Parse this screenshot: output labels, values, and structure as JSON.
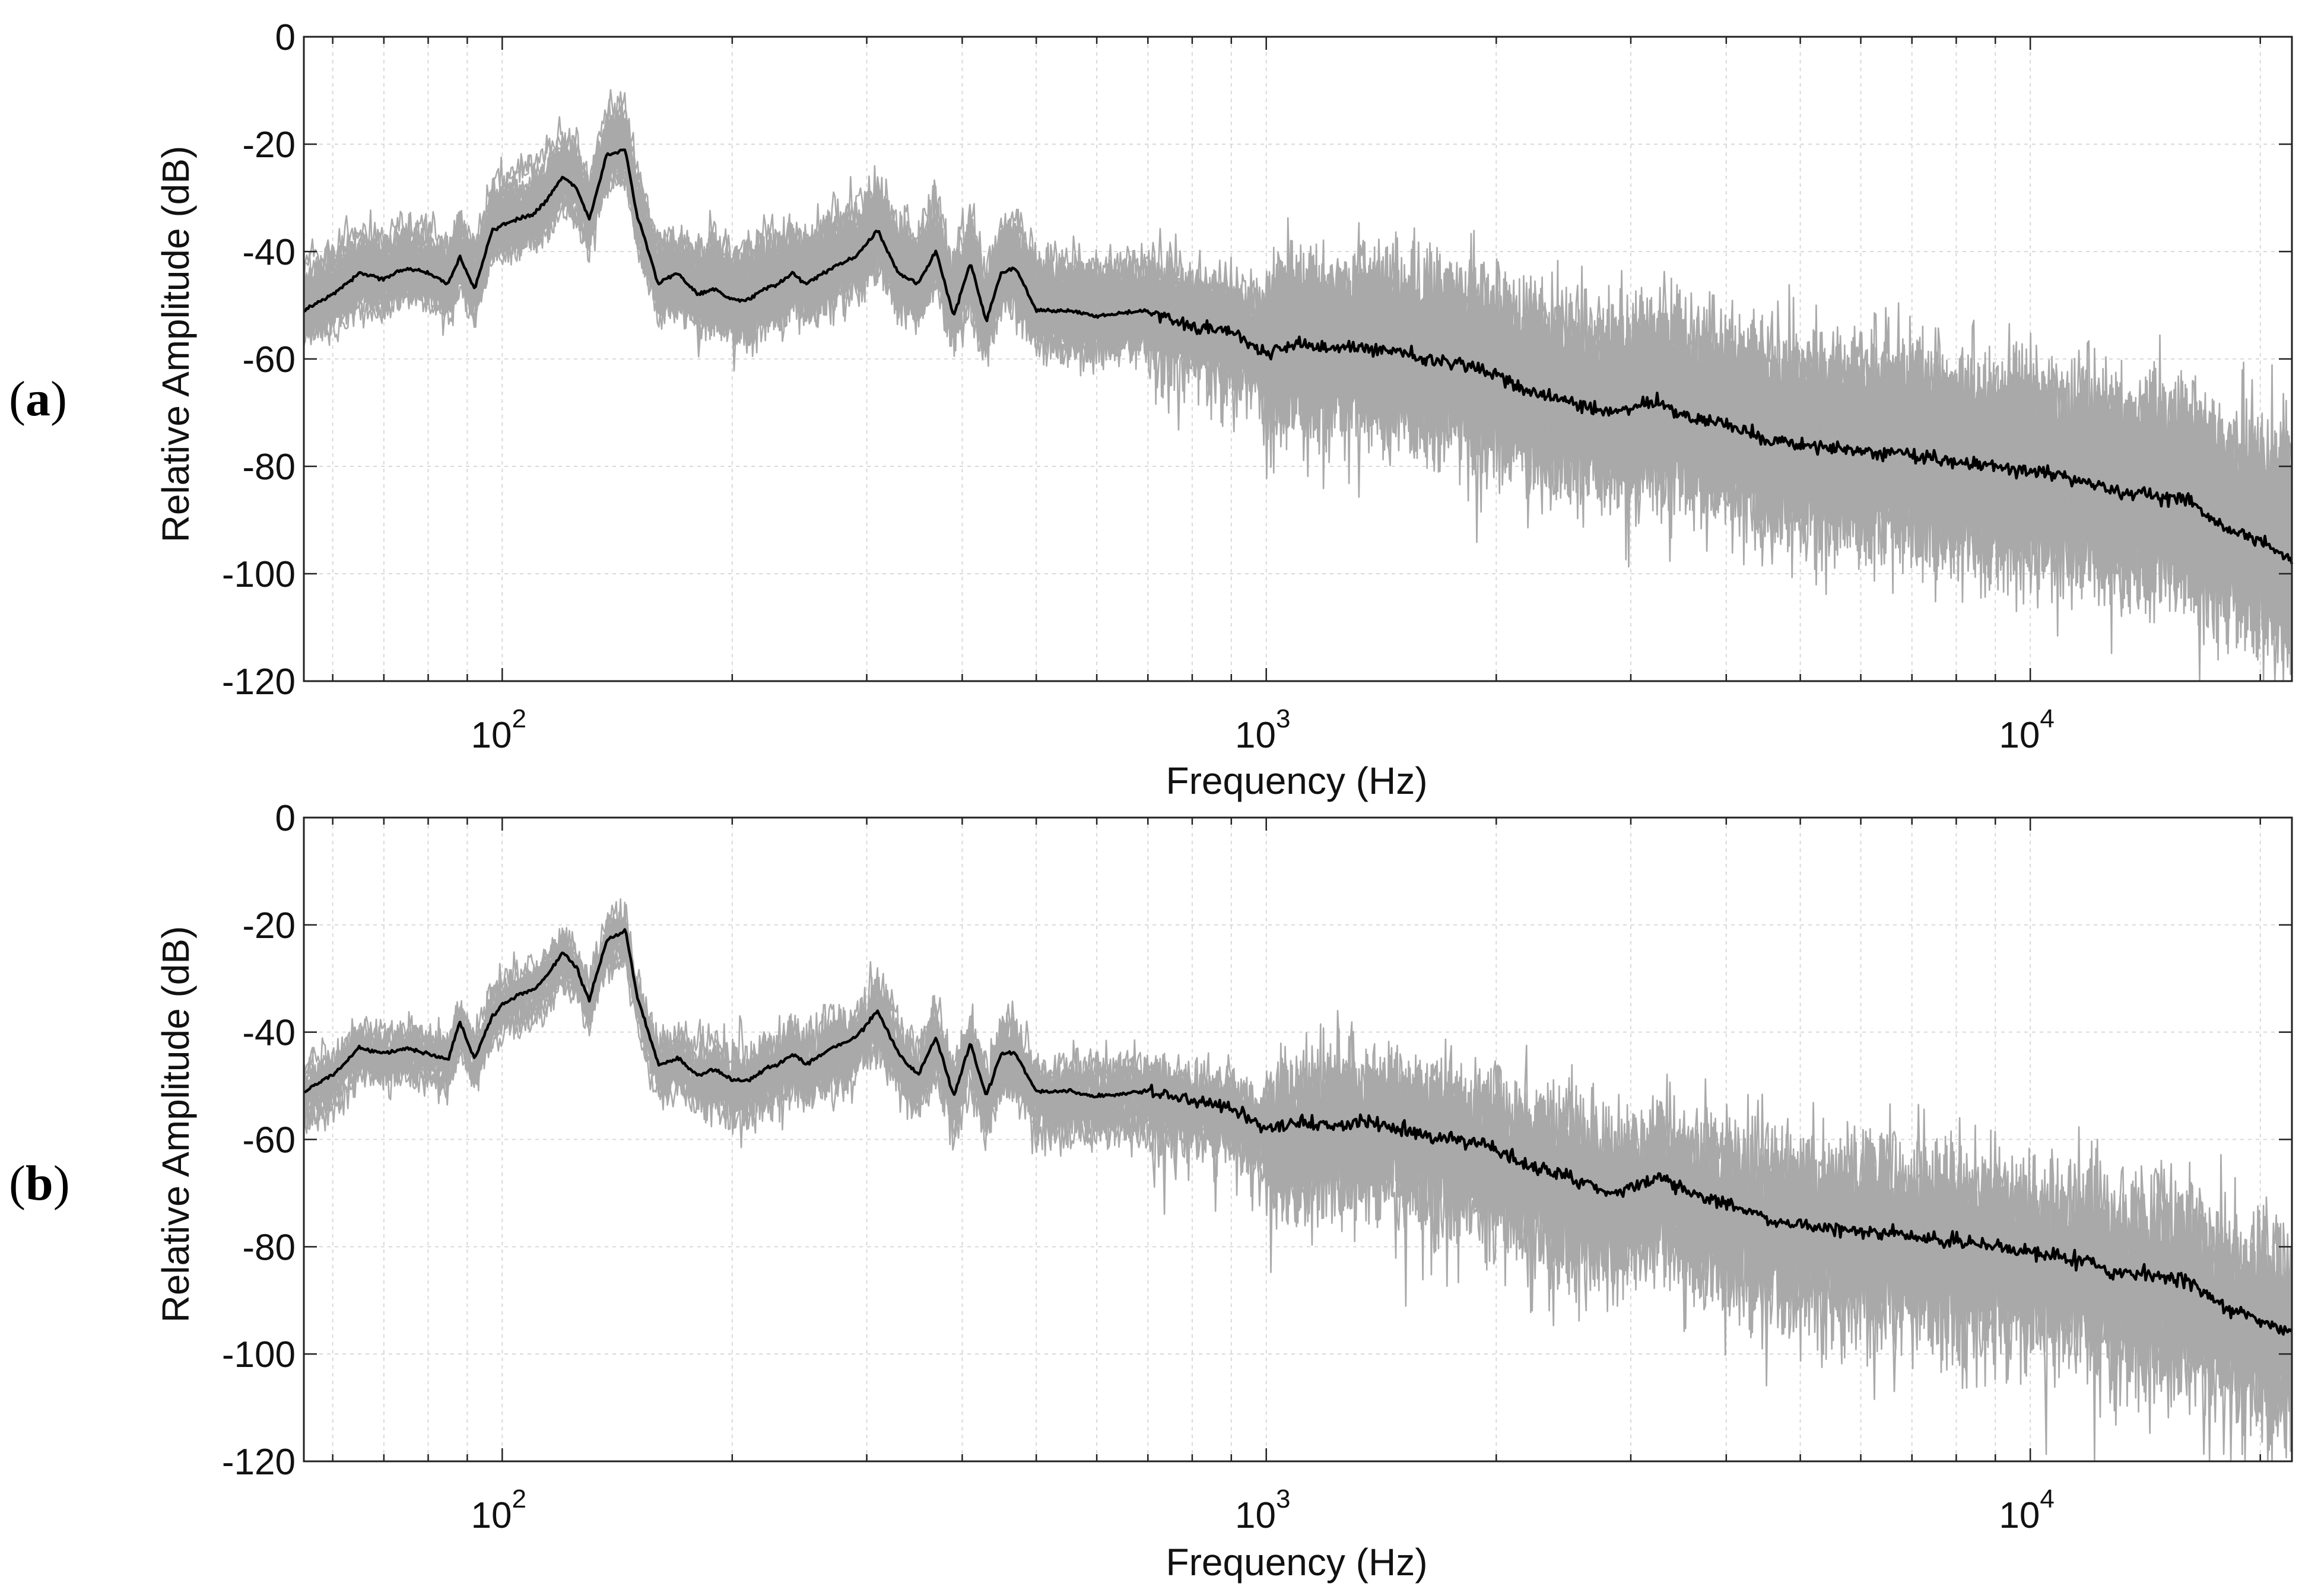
{
  "chart_data": [
    {
      "type": "line",
      "panel_label": "a",
      "xlabel": "Frequency (Hz)",
      "ylabel": "Relative Amplitude (dB)",
      "xscale": "log",
      "xlim": [
        55,
        22000
      ],
      "ylim": [
        -120,
        0
      ],
      "y_ticks": [
        "0",
        "-20",
        "-40",
        "-60",
        "-80",
        "-100",
        "-120"
      ],
      "x_tick_labels": [
        {
          "base": "10",
          "exp": "2"
        },
        {
          "base": "10",
          "exp": "3"
        },
        {
          "base": "10",
          "exp": "4"
        }
      ],
      "grid": true,
      "trace_count": 40,
      "trace_spread_db": 8,
      "colors": {
        "traces": "#a9a9a9",
        "mean": "#000000",
        "grid": "#d9d9d9"
      },
      "series": [
        {
          "role": "mean",
          "x": [
            55,
            60,
            65,
            70,
            75,
            80,
            85,
            88,
            92,
            97,
            100,
            105,
            110,
            115,
            120,
            125,
            130,
            137,
            145,
            150,
            160,
            170,
            180,
            190,
            200,
            210,
            220,
            230,
            240,
            250,
            270,
            290,
            310,
            330,
            350,
            370,
            390,
            410,
            430,
            450,
            470,
            500,
            550,
            600,
            700,
            800,
            900,
            1000,
            1100,
            1200,
            1400,
            1600,
            1800,
            2000,
            2200,
            2500,
            2800,
            3000,
            3300,
            3600,
            4000,
            4500,
            5000,
            6000,
            7000,
            8000,
            9000,
            10000,
            11000,
            12000,
            13000,
            14000,
            15000,
            16000,
            17000,
            18000,
            20000,
            22000
          ],
          "y": [
            -51,
            -48,
            -44,
            -45,
            -43,
            -44,
            -46,
            -41,
            -47,
            -36,
            -35,
            -34,
            -33,
            -30,
            -26,
            -28,
            -34,
            -22,
            -21,
            -33,
            -46,
            -44,
            -48,
            -47,
            -49,
            -49,
            -47,
            -46,
            -44,
            -46,
            -43,
            -41,
            -36,
            -44,
            -46,
            -40,
            -52,
            -42,
            -53,
            -44,
            -43,
            -51,
            -51,
            -52,
            -51,
            -54,
            -55,
            -59,
            -57,
            -58,
            -58,
            -60,
            -61,
            -63,
            -66,
            -68,
            -70,
            -69,
            -68,
            -71,
            -72,
            -75,
            -76,
            -77,
            -78,
            -79,
            -80,
            -81,
            -82,
            -83,
            -85,
            -85,
            -86,
            -86,
            -89,
            -91,
            -94,
            -97
          ]
        }
      ]
    },
    {
      "type": "line",
      "panel_label": "b",
      "xlabel": "Frequency (Hz)",
      "ylabel": "Relative Amplitude (dB)",
      "xscale": "log",
      "xlim": [
        55,
        22000
      ],
      "ylim": [
        -120,
        0
      ],
      "y_ticks": [
        "0",
        "-20",
        "-40",
        "-60",
        "-80",
        "-100",
        "-120"
      ],
      "x_tick_labels": [
        {
          "base": "10",
          "exp": "2"
        },
        {
          "base": "10",
          "exp": "3"
        },
        {
          "base": "10",
          "exp": "4"
        }
      ],
      "grid": true,
      "trace_count": 20,
      "trace_spread_db": 5,
      "colors": {
        "traces": "#a9a9a9",
        "mean": "#000000",
        "grid": "#d9d9d9"
      },
      "series": [
        {
          "role": "mean",
          "x": [
            55,
            60,
            65,
            70,
            75,
            80,
            85,
            88,
            92,
            97,
            100,
            105,
            110,
            115,
            120,
            125,
            130,
            137,
            145,
            150,
            160,
            170,
            180,
            190,
            200,
            210,
            220,
            230,
            240,
            250,
            270,
            290,
            310,
            330,
            350,
            370,
            390,
            410,
            430,
            450,
            470,
            500,
            550,
            600,
            700,
            800,
            900,
            1000,
            1100,
            1200,
            1400,
            1600,
            1800,
            2000,
            2200,
            2500,
            2800,
            3000,
            3300,
            3600,
            4000,
            4500,
            5000,
            6000,
            7000,
            8000,
            9000,
            10000,
            11000,
            12000,
            13000,
            14000,
            15000,
            16000,
            17000,
            18000,
            20000,
            22000
          ],
          "y": [
            -51,
            -48,
            -43,
            -44,
            -43,
            -44,
            -45,
            -38,
            -45,
            -37,
            -35,
            -33,
            -32,
            -29,
            -25,
            -28,
            -34,
            -23,
            -21,
            -33,
            -46,
            -45,
            -48,
            -47,
            -49,
            -49,
            -47,
            -46,
            -44,
            -46,
            -43,
            -41,
            -36,
            -44,
            -48,
            -41,
            -52,
            -42,
            -52,
            -44,
            -44,
            -51,
            -51,
            -52,
            -51,
            -53,
            -54,
            -58,
            -57,
            -57,
            -57,
            -59,
            -60,
            -62,
            -65,
            -67,
            -70,
            -69,
            -67,
            -70,
            -72,
            -75,
            -76,
            -77,
            -78,
            -79,
            -80,
            -81,
            -82,
            -83,
            -85,
            -85,
            -86,
            -86,
            -89,
            -91,
            -94,
            -96
          ]
        }
      ]
    }
  ]
}
